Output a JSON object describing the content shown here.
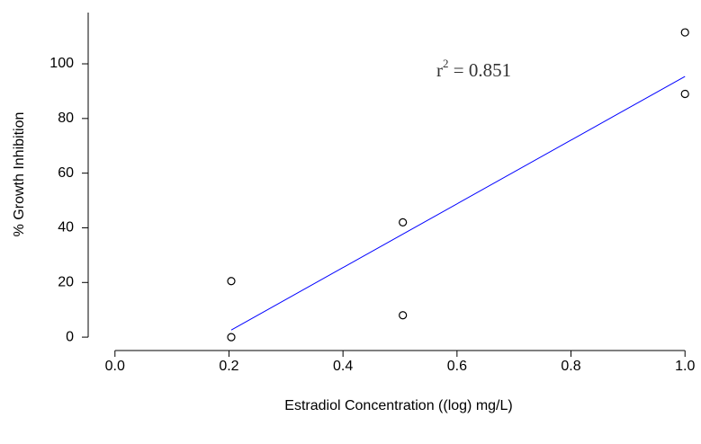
{
  "chart_data": {
    "type": "scatter",
    "x_label": "Estradiol Concentration ((log) mg/L)",
    "y_label": "% Growth Inhibition",
    "x": [
      0.204,
      0.204,
      0.505,
      0.505,
      1.0,
      1.0
    ],
    "values": [
      0,
      20.5,
      8,
      42,
      89,
      111.5
    ],
    "color": "#000000",
    "fit": {
      "x": [
        0.204,
        1.0
      ],
      "values": [
        2.6,
        95.4
      ],
      "color": "#0000ff"
    },
    "annotation": [
      "r",
      "2",
      " = 0.851"
    ],
    "xlim": [
      -0.047,
      1.047
    ],
    "ylim": [
      -4.9,
      118.75
    ],
    "xticks": [
      {
        "value": 0,
        "label": "0.0"
      },
      0.2,
      0.4,
      0.6,
      0.8,
      {
        "value": 1,
        "label": "1.0"
      }
    ],
    "yticks": [
      0,
      20,
      40,
      60,
      80,
      100
    ],
    "grid": false
  }
}
